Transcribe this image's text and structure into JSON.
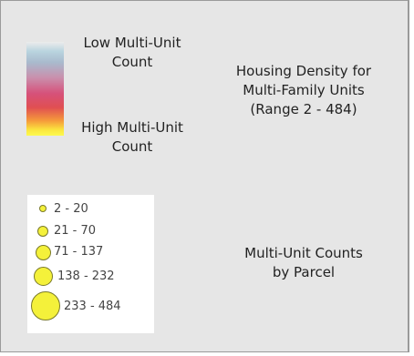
{
  "ramp": {
    "low_label_line1": "Low Multi-Unit",
    "low_label_line2": "Count",
    "high_label_line1": "High Multi-Unit",
    "high_label_line2": "Count",
    "colors": [
      "#ececec",
      "#b9d4df",
      "#a9bacd",
      "#c990ad",
      "#d6517a",
      "#e04f52",
      "#f59a3b",
      "#fbe73e",
      "#fcfa50"
    ]
  },
  "density_title": {
    "line1": "Housing Density for",
    "line2": "Multi-Family Units",
    "line3": "(Range 2 - 484)"
  },
  "symbols": {
    "fill_color": "#f4f13a",
    "items": [
      {
        "label": "2 - 20"
      },
      {
        "label": "21 - 70"
      },
      {
        "label": "71 - 137"
      },
      {
        "label": "138 - 232"
      },
      {
        "label": "233 - 484"
      }
    ]
  },
  "counts_title": {
    "line1": "Multi-Unit Counts",
    "line2": "by Parcel"
  }
}
